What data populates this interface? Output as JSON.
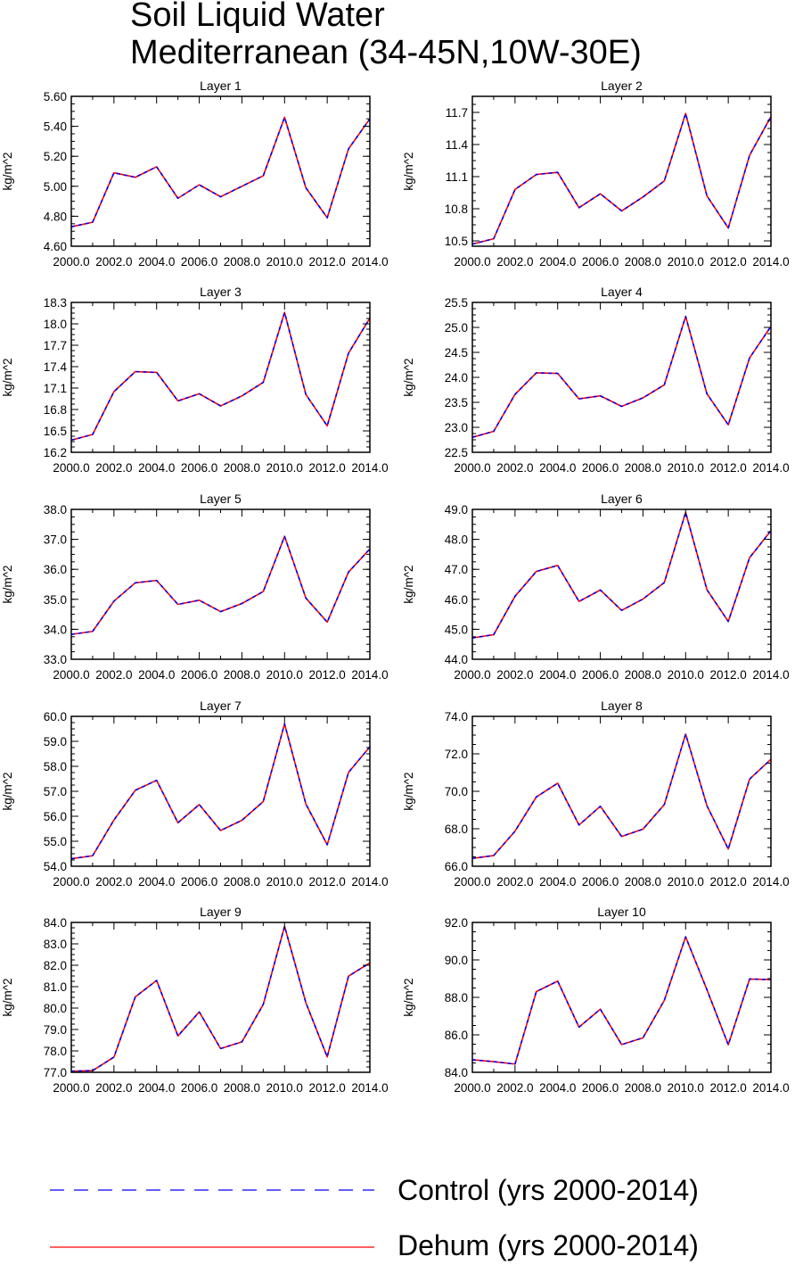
{
  "title_lines": [
    "Soil Liquid Water",
    "Mediterranean (34-45N,10W-30E)"
  ],
  "legend": [
    {
      "label": "Control (yrs 2000-2014)",
      "color": "#0000ff",
      "style": "dashed"
    },
    {
      "label": "Dehum (yrs 2000-2014)",
      "color": "#ff0000",
      "style": "solid"
    }
  ],
  "chart_data": [
    {
      "type": "line",
      "title": "Layer 1",
      "ylabel": "kg/m^2",
      "x": [
        2000,
        2001,
        2002,
        2003,
        2004,
        2005,
        2006,
        2007,
        2008,
        2009,
        2010,
        2011,
        2012,
        2013,
        2014
      ],
      "xticks": [
        "2000.0",
        "2002.0",
        "2004.0",
        "2006.0",
        "2008.0",
        "2010.0",
        "2012.0",
        "2014.0"
      ],
      "yticks": [
        "4.60",
        "4.80",
        "5.00",
        "5.20",
        "5.40",
        "5.60"
      ],
      "ylim": [
        4.6,
        5.6
      ],
      "series": [
        {
          "name": "Control (yrs 2000-2014)",
          "values": [
            4.73,
            4.76,
            5.09,
            5.06,
            5.13,
            4.92,
            5.01,
            4.93,
            5.0,
            5.07,
            5.46,
            4.99,
            4.79,
            5.25,
            5.45
          ]
        },
        {
          "name": "Dehum (yrs 2000-2014)",
          "values": [
            4.73,
            4.76,
            5.09,
            5.06,
            5.13,
            4.92,
            5.01,
            4.93,
            5.0,
            5.07,
            5.46,
            4.99,
            4.79,
            5.25,
            5.45
          ]
        }
      ]
    },
    {
      "type": "line",
      "title": "Layer 2",
      "ylabel": "kg/m^2",
      "x": [
        2000,
        2001,
        2002,
        2003,
        2004,
        2005,
        2006,
        2007,
        2008,
        2009,
        2010,
        2011,
        2012,
        2013,
        2014
      ],
      "xticks": [
        "2000.0",
        "2002.0",
        "2004.0",
        "2006.0",
        "2008.0",
        "2010.0",
        "2012.0",
        "2014.0"
      ],
      "yticks": [
        "10.5",
        "10.8",
        "11.1",
        "11.4",
        "11.7"
      ],
      "ylim": [
        10.45,
        11.85
      ],
      "series": [
        {
          "name": "Control (yrs 2000-2014)",
          "values": [
            10.47,
            10.52,
            10.98,
            11.12,
            11.14,
            10.81,
            10.94,
            10.78,
            10.91,
            11.06,
            11.69,
            10.92,
            10.62,
            11.3,
            11.66
          ]
        },
        {
          "name": "Dehum (yrs 2000-2014)",
          "values": [
            10.47,
            10.52,
            10.98,
            11.12,
            11.14,
            10.81,
            10.94,
            10.78,
            10.91,
            11.06,
            11.69,
            10.92,
            10.62,
            11.3,
            11.66
          ]
        }
      ]
    },
    {
      "type": "line",
      "title": "Layer 3",
      "ylabel": "kg/m^2",
      "x": [
        2000,
        2001,
        2002,
        2003,
        2004,
        2005,
        2006,
        2007,
        2008,
        2009,
        2010,
        2011,
        2012,
        2013,
        2014
      ],
      "xticks": [
        "2000.0",
        "2002.0",
        "2004.0",
        "2006.0",
        "2008.0",
        "2010.0",
        "2012.0",
        "2014.0"
      ],
      "yticks": [
        "16.2",
        "16.5",
        "16.8",
        "17.1",
        "17.4",
        "17.7",
        "18.0",
        "18.3"
      ],
      "ylim": [
        16.2,
        18.3
      ],
      "series": [
        {
          "name": "Control (yrs 2000-2014)",
          "values": [
            16.37,
            16.45,
            17.05,
            17.33,
            17.32,
            16.92,
            17.02,
            16.85,
            16.99,
            17.18,
            18.16,
            17.01,
            16.57,
            17.59,
            18.08
          ]
        },
        {
          "name": "Dehum (yrs 2000-2014)",
          "values": [
            16.37,
            16.45,
            17.05,
            17.33,
            17.32,
            16.92,
            17.02,
            16.85,
            16.99,
            17.18,
            18.16,
            17.01,
            16.57,
            17.59,
            18.08
          ]
        }
      ]
    },
    {
      "type": "line",
      "title": "Layer 4",
      "ylabel": "kg/m^2",
      "x": [
        2000,
        2001,
        2002,
        2003,
        2004,
        2005,
        2006,
        2007,
        2008,
        2009,
        2010,
        2011,
        2012,
        2013,
        2014
      ],
      "xticks": [
        "2000.0",
        "2002.0",
        "2004.0",
        "2006.0",
        "2008.0",
        "2010.0",
        "2012.0",
        "2014.0"
      ],
      "yticks": [
        "22.5",
        "23.0",
        "23.5",
        "24.0",
        "24.5",
        "25.0",
        "25.5"
      ],
      "ylim": [
        22.5,
        25.5
      ],
      "series": [
        {
          "name": "Control (yrs 2000-2014)",
          "values": [
            22.8,
            22.92,
            23.66,
            24.09,
            24.08,
            23.57,
            23.63,
            23.42,
            23.59,
            23.85,
            25.22,
            23.67,
            23.05,
            24.39,
            25.02
          ]
        },
        {
          "name": "Dehum (yrs 2000-2014)",
          "values": [
            22.8,
            22.92,
            23.66,
            24.09,
            24.08,
            23.57,
            23.63,
            23.42,
            23.59,
            23.85,
            25.22,
            23.67,
            23.05,
            24.39,
            25.02
          ]
        }
      ]
    },
    {
      "type": "line",
      "title": "Layer 5",
      "ylabel": "kg/m^2",
      "x": [
        2000,
        2001,
        2002,
        2003,
        2004,
        2005,
        2006,
        2007,
        2008,
        2009,
        2010,
        2011,
        2012,
        2013,
        2014
      ],
      "xticks": [
        "2000.0",
        "2002.0",
        "2004.0",
        "2006.0",
        "2008.0",
        "2010.0",
        "2012.0",
        "2014.0"
      ],
      "yticks": [
        "33.0",
        "34.0",
        "35.0",
        "36.0",
        "37.0",
        "38.0"
      ],
      "ylim": [
        33.0,
        38.0
      ],
      "series": [
        {
          "name": "Control (yrs 2000-2014)",
          "values": [
            33.83,
            33.93,
            34.94,
            35.55,
            35.63,
            34.83,
            34.97,
            34.59,
            34.86,
            35.26,
            37.1,
            35.04,
            34.24,
            35.91,
            36.68
          ]
        },
        {
          "name": "Dehum (yrs 2000-2014)",
          "values": [
            33.83,
            33.93,
            34.94,
            35.55,
            35.63,
            34.83,
            34.97,
            34.59,
            34.86,
            35.26,
            37.1,
            35.04,
            34.24,
            35.91,
            36.68
          ]
        }
      ]
    },
    {
      "type": "line",
      "title": "Layer 6",
      "ylabel": "kg/m^2",
      "x": [
        2000,
        2001,
        2002,
        2003,
        2004,
        2005,
        2006,
        2007,
        2008,
        2009,
        2010,
        2011,
        2012,
        2013,
        2014
      ],
      "xticks": [
        "2000.0",
        "2002.0",
        "2004.0",
        "2006.0",
        "2008.0",
        "2010.0",
        "2012.0",
        "2014.0"
      ],
      "yticks": [
        "44.0",
        "45.0",
        "46.0",
        "47.0",
        "48.0",
        "49.0"
      ],
      "ylim": [
        44.0,
        49.0
      ],
      "series": [
        {
          "name": "Control (yrs 2000-2014)",
          "values": [
            44.71,
            44.82,
            46.1,
            46.93,
            47.13,
            45.93,
            46.31,
            45.63,
            46.01,
            46.56,
            48.9,
            46.32,
            45.26,
            47.39,
            48.29
          ]
        },
        {
          "name": "Dehum (yrs 2000-2014)",
          "values": [
            44.71,
            44.82,
            46.1,
            46.93,
            47.13,
            45.93,
            46.31,
            45.63,
            46.01,
            46.56,
            48.9,
            46.32,
            45.26,
            47.39,
            48.29
          ]
        }
      ]
    },
    {
      "type": "line",
      "title": "Layer 7",
      "ylabel": "kg/m^2",
      "x": [
        2000,
        2001,
        2002,
        2003,
        2004,
        2005,
        2006,
        2007,
        2008,
        2009,
        2010,
        2011,
        2012,
        2013,
        2014
      ],
      "xticks": [
        "2000.0",
        "2002.0",
        "2004.0",
        "2006.0",
        "2008.0",
        "2010.0",
        "2012.0",
        "2014.0"
      ],
      "yticks": [
        "54.0",
        "55.0",
        "56.0",
        "57.0",
        "58.0",
        "59.0",
        "60.0"
      ],
      "ylim": [
        54.0,
        60.0
      ],
      "series": [
        {
          "name": "Control (yrs 2000-2014)",
          "values": [
            54.3,
            54.42,
            55.85,
            57.04,
            57.44,
            55.74,
            56.47,
            55.43,
            55.84,
            56.59,
            59.7,
            56.49,
            54.86,
            57.76,
            58.78
          ]
        },
        {
          "name": "Dehum (yrs 2000-2014)",
          "values": [
            54.3,
            54.42,
            55.85,
            57.04,
            57.44,
            55.74,
            56.47,
            55.43,
            55.84,
            56.59,
            59.7,
            56.49,
            54.86,
            57.76,
            58.78
          ]
        }
      ]
    },
    {
      "type": "line",
      "title": "Layer 8",
      "ylabel": "kg/m^2",
      "x": [
        2000,
        2001,
        2002,
        2003,
        2004,
        2005,
        2006,
        2007,
        2008,
        2009,
        2010,
        2011,
        2012,
        2013,
        2014
      ],
      "xticks": [
        "2000.0",
        "2002.0",
        "2004.0",
        "2006.0",
        "2008.0",
        "2010.0",
        "2012.0",
        "2014.0"
      ],
      "yticks": [
        "66.0",
        "68.0",
        "70.0",
        "72.0",
        "74.0"
      ],
      "ylim": [
        66.0,
        74.0
      ],
      "series": [
        {
          "name": "Control (yrs 2000-2014)",
          "values": [
            66.42,
            66.57,
            67.87,
            69.7,
            70.43,
            68.2,
            69.2,
            67.59,
            67.98,
            69.29,
            73.05,
            69.23,
            66.92,
            70.65,
            71.71
          ]
        },
        {
          "name": "Dehum (yrs 2000-2014)",
          "values": [
            66.42,
            66.57,
            67.87,
            69.7,
            70.43,
            68.2,
            69.2,
            67.59,
            67.98,
            69.29,
            73.05,
            69.23,
            66.92,
            70.65,
            71.71
          ]
        }
      ]
    },
    {
      "type": "line",
      "title": "Layer 9",
      "ylabel": "kg/m^2",
      "x": [
        2000,
        2001,
        2002,
        2003,
        2004,
        2005,
        2006,
        2007,
        2008,
        2009,
        2010,
        2011,
        2012,
        2013,
        2014
      ],
      "xticks": [
        "2000.0",
        "2002.0",
        "2004.0",
        "2006.0",
        "2008.0",
        "2010.0",
        "2012.0",
        "2014.0"
      ],
      "yticks": [
        "77.0",
        "78.0",
        "79.0",
        "80.0",
        "81.0",
        "82.0",
        "83.0",
        "84.0"
      ],
      "ylim": [
        77.0,
        84.0
      ],
      "series": [
        {
          "name": "Control (yrs 2000-2014)",
          "values": [
            77.05,
            77.08,
            77.71,
            80.52,
            81.29,
            78.7,
            79.82,
            78.11,
            78.42,
            80.17,
            83.82,
            80.25,
            77.72,
            81.49,
            82.11
          ]
        },
        {
          "name": "Dehum (yrs 2000-2014)",
          "values": [
            77.05,
            77.08,
            77.71,
            80.52,
            81.29,
            78.7,
            79.82,
            78.11,
            78.42,
            80.17,
            83.82,
            80.25,
            77.72,
            81.49,
            82.11
          ]
        }
      ]
    },
    {
      "type": "line",
      "title": "Layer 10",
      "ylabel": "kg/m^2",
      "x": [
        2000,
        2001,
        2002,
        2003,
        2004,
        2005,
        2006,
        2007,
        2008,
        2009,
        2010,
        2011,
        2012,
        2013,
        2014
      ],
      "xticks": [
        "2000.0",
        "2002.0",
        "2004.0",
        "2006.0",
        "2008.0",
        "2010.0",
        "2012.0",
        "2014.0"
      ],
      "yticks": [
        "84.0",
        "86.0",
        "88.0",
        "90.0",
        "92.0"
      ],
      "ylim": [
        84.0,
        92.0
      ],
      "series": [
        {
          "name": "Control (yrs 2000-2014)",
          "values": [
            84.67,
            84.57,
            84.44,
            88.31,
            88.87,
            86.41,
            87.37,
            85.48,
            85.84,
            87.84,
            91.23,
            88.41,
            85.47,
            88.98,
            88.95
          ]
        },
        {
          "name": "Dehum (yrs 2000-2014)",
          "values": [
            84.67,
            84.57,
            84.44,
            88.31,
            88.87,
            86.41,
            87.37,
            85.48,
            85.84,
            87.84,
            91.23,
            88.41,
            85.47,
            88.98,
            88.95
          ]
        }
      ]
    }
  ]
}
